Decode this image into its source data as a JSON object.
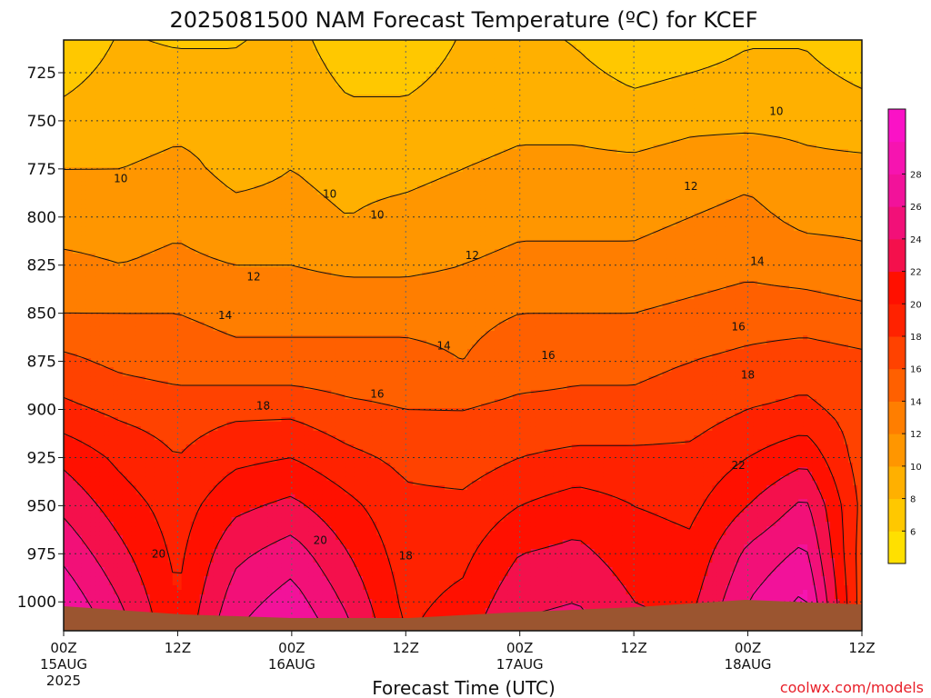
{
  "chart_data": {
    "type": "heatmap",
    "title": "2025081500 NAM Forecast Temperature (ºC) for KCEF",
    "xlabel": "Forecast Time (UTC)",
    "ylabel": "",
    "credit": "coolwx.com/models",
    "xlim_hours": [
      0,
      84
    ],
    "ylim": [
      1015,
      708
    ],
    "y_ticks": [
      725,
      750,
      775,
      800,
      825,
      850,
      875,
      900,
      925,
      950,
      975,
      1000
    ],
    "x_ticks": [
      {
        "hour": 0,
        "label": "00Z",
        "date": "15AUG",
        "year": "2025"
      },
      {
        "hour": 12,
        "label": "12Z",
        "date": "",
        "year": ""
      },
      {
        "hour": 24,
        "label": "00Z",
        "date": "16AUG",
        "year": ""
      },
      {
        "hour": 36,
        "label": "12Z",
        "date": "",
        "year": ""
      },
      {
        "hour": 48,
        "label": "00Z",
        "date": "17AUG",
        "year": ""
      },
      {
        "hour": 60,
        "label": "12Z",
        "date": "",
        "year": ""
      },
      {
        "hour": 72,
        "label": "00Z",
        "date": "18AUG",
        "year": ""
      },
      {
        "hour": 84,
        "label": "12Z",
        "date": "",
        "year": ""
      }
    ],
    "grid": true,
    "legend": "right",
    "colorbar": {
      "ticks": [
        6,
        8,
        10,
        12,
        14,
        16,
        18,
        20,
        22,
        24,
        26,
        28
      ],
      "colors": [
        "#ffe000",
        "#ffc800",
        "#ffb000",
        "#ff9600",
        "#ff7e00",
        "#ff6000",
        "#ff4200",
        "#ff2200",
        "#ff1000",
        "#f4104c",
        "#f21078",
        "#f2129a",
        "#f614b0",
        "#fa12c6"
      ]
    },
    "hours": [
      0,
      6,
      12,
      18,
      24,
      30,
      36,
      42,
      48,
      54,
      60,
      66,
      72,
      78,
      84
    ],
    "pressure_levels": [
      725,
      750,
      775,
      800,
      825,
      850,
      875,
      900,
      925,
      950,
      975,
      1000
    ],
    "temperature": [
      [
        7.5,
        8.5,
        8.5,
        8.5,
        9.0,
        7.5,
        7.5,
        8.5,
        9.0,
        8.5,
        7.5,
        8.0,
        8.5,
        8.5,
        7.5
      ],
      [
        8.5,
        9.0,
        9.5,
        9.5,
        9.5,
        8.5,
        8.5,
        9.0,
        9.5,
        9.5,
        9.0,
        9.5,
        9.5,
        9.5,
        9.0
      ],
      [
        10.0,
        10.0,
        10.5,
        9.5,
        10.0,
        9.5,
        9.5,
        10.0,
        10.5,
        10.5,
        10.5,
        11.0,
        11.5,
        10.5,
        10.5
      ],
      [
        11.0,
        11.0,
        11.5,
        10.5,
        10.5,
        10.0,
        10.5,
        11.0,
        11.5,
        11.5,
        11.5,
        12.0,
        12.5,
        11.5,
        11.5
      ],
      [
        12.5,
        12.0,
        12.5,
        12.0,
        12.0,
        11.5,
        11.5,
        12.0,
        12.5,
        12.5,
        12.5,
        13.0,
        13.5,
        13.0,
        12.5
      ],
      [
        14.0,
        14.0,
        14.0,
        13.5,
        13.5,
        13.5,
        13.5,
        13.5,
        14.0,
        14.0,
        14.0,
        14.5,
        15.0,
        15.0,
        14.5
      ],
      [
        16.5,
        15.5,
        15.0,
        14.5,
        14.5,
        14.5,
        14.5,
        14.0,
        15.0,
        15.5,
        15.5,
        16.0,
        16.5,
        17.0,
        16.5
      ],
      [
        18.5,
        17.5,
        17.0,
        17.5,
        17.5,
        16.5,
        16.0,
        16.0,
        16.5,
        16.5,
        16.5,
        17.0,
        18.0,
        18.5,
        17.0
      ],
      [
        21.5,
        19.5,
        18.0,
        19.5,
        20.0,
        18.5,
        17.5,
        17.0,
        18.0,
        18.5,
        18.5,
        18.5,
        20.0,
        21.5,
        17.0
      ],
      [
        23.5,
        21.0,
        19.0,
        21.5,
        22.5,
        20.5,
        18.5,
        18.5,
        20.0,
        21.0,
        20.0,
        19.5,
        22.0,
        24.5,
        17.5
      ],
      [
        25.5,
        22.5,
        19.5,
        23.5,
        25.0,
        22.0,
        19.0,
        19.5,
        22.0,
        22.5,
        21.0,
        20.5,
        24.5,
        26.5,
        17.0
      ],
      [
        27.5,
        24.0,
        20.0,
        25.0,
        27.0,
        23.5,
        19.5,
        20.5,
        23.5,
        24.0,
        22.0,
        21.5,
        26.0,
        28.5,
        17.0
      ]
    ],
    "contour_labels": [
      {
        "text": "10",
        "hour": 6,
        "p": 780
      },
      {
        "text": "10",
        "hour": 28,
        "p": 788
      },
      {
        "text": "10",
        "hour": 33,
        "p": 799
      },
      {
        "text": "10",
        "hour": 75,
        "p": 745
      },
      {
        "text": "12",
        "hour": 20,
        "p": 831
      },
      {
        "text": "12",
        "hour": 43,
        "p": 820
      },
      {
        "text": "12",
        "hour": 66,
        "p": 784
      },
      {
        "text": "14",
        "hour": 17,
        "p": 851
      },
      {
        "text": "14",
        "hour": 40,
        "p": 867
      },
      {
        "text": "14",
        "hour": 73,
        "p": 823
      },
      {
        "text": "16",
        "hour": 33,
        "p": 892
      },
      {
        "text": "16",
        "hour": 51,
        "p": 872
      },
      {
        "text": "16",
        "hour": 71,
        "p": 857
      },
      {
        "text": "18",
        "hour": 21,
        "p": 898
      },
      {
        "text": "18",
        "hour": 36,
        "p": 976
      },
      {
        "text": "18",
        "hour": 72,
        "p": 882
      },
      {
        "text": "20",
        "hour": 10,
        "p": 975
      },
      {
        "text": "20",
        "hour": 27,
        "p": 968
      },
      {
        "text": "22",
        "hour": 71,
        "p": 929
      }
    ]
  }
}
